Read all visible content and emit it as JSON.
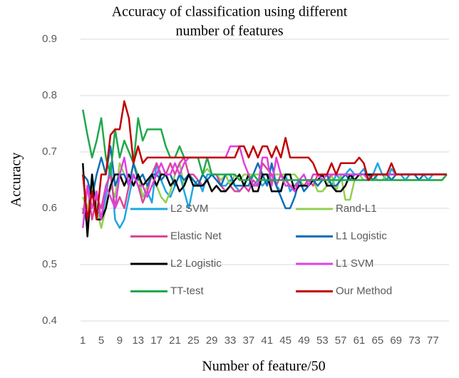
{
  "chart_data": {
    "type": "line",
    "title": [
      "Accuracy of classification using different",
      "number of features"
    ],
    "x_label": "Number of feature/50",
    "y_label": "Accuracy",
    "categories": [
      1,
      null,
      null,
      null,
      5,
      null,
      null,
      null,
      9,
      null,
      null,
      null,
      13,
      null,
      null,
      null,
      17,
      null,
      null,
      null,
      21,
      null,
      null,
      null,
      25,
      null,
      null,
      null,
      29,
      null,
      null,
      null,
      33,
      null,
      null,
      null,
      37,
      null,
      null,
      null,
      41,
      null,
      null,
      null,
      45,
      null,
      null,
      null,
      49,
      null,
      null,
      null,
      53,
      null,
      null,
      null,
      57,
      null,
      null,
      null,
      61,
      null,
      null,
      null,
      65,
      null,
      null,
      null,
      69,
      null,
      null,
      null,
      73,
      null,
      null,
      null,
      77,
      null,
      null,
      null
    ],
    "ylim": [
      0.4,
      0.9
    ],
    "yticks": [
      0.4,
      0.5,
      0.6,
      0.7,
      0.8,
      0.9
    ],
    "grid": true,
    "legend": "bottom",
    "series": [
      {
        "name": "L2 SVM",
        "color": "#1ea7e1",
        "values": [
          0.6,
          0.57,
          0.66,
          0.6,
          0.58,
          0.62,
          0.68,
          0.58,
          0.565,
          0.58,
          0.62,
          0.66,
          0.64,
          0.62,
          0.63,
          0.61,
          0.68,
          0.65,
          0.63,
          0.62,
          0.64,
          0.66,
          0.63,
          0.6,
          0.64,
          0.65,
          0.63,
          0.66,
          0.66,
          0.65,
          0.64,
          0.64,
          0.65,
          0.64,
          0.63,
          0.64,
          0.66,
          0.64,
          0.65,
          0.64,
          0.65,
          0.66,
          0.64,
          0.63,
          0.66,
          0.63,
          0.64,
          0.65,
          0.64,
          0.64,
          0.66,
          0.66,
          0.65,
          0.66,
          0.64,
          0.66,
          0.65,
          0.66,
          0.67,
          0.66,
          0.66,
          0.67,
          0.65,
          0.66,
          0.68,
          0.66,
          0.65,
          0.67,
          0.66,
          0.66,
          0.65,
          0.66,
          0.66,
          0.66,
          0.66,
          0.65,
          0.66,
          0.66,
          0.66,
          0.66
        ]
      },
      {
        "name": "Rand-L1",
        "color": "#92d050",
        "values": [
          0.62,
          0.6,
          0.64,
          0.6,
          0.565,
          0.6,
          0.64,
          0.62,
          0.68,
          0.66,
          0.64,
          0.68,
          0.66,
          0.62,
          0.64,
          0.66,
          0.64,
          0.62,
          0.61,
          0.63,
          0.66,
          0.68,
          0.64,
          0.66,
          0.65,
          0.64,
          0.66,
          0.67,
          0.66,
          0.66,
          0.65,
          0.66,
          0.64,
          0.66,
          0.65,
          0.66,
          0.66,
          0.66,
          0.66,
          0.66,
          0.66,
          0.66,
          0.66,
          0.66,
          0.66,
          0.66,
          0.66,
          0.65,
          0.64,
          0.65,
          0.65,
          0.63,
          0.63,
          0.64,
          0.66,
          0.63,
          0.66,
          0.615,
          0.615,
          0.65,
          0.66,
          0.65,
          0.65,
          0.66,
          0.65,
          0.65,
          0.66,
          0.65,
          0.65,
          0.65,
          0.65,
          0.65,
          0.65,
          0.65,
          0.65,
          0.65,
          0.65,
          0.65,
          0.65,
          0.66
        ]
      },
      {
        "name": "Elastic Net",
        "color": "#d9479b",
        "values": [
          0.59,
          0.64,
          0.58,
          0.62,
          0.6,
          0.64,
          0.66,
          0.6,
          0.62,
          0.6,
          0.64,
          0.66,
          0.64,
          0.61,
          0.63,
          0.66,
          0.68,
          0.66,
          0.66,
          0.68,
          0.66,
          0.68,
          0.69,
          0.66,
          0.66,
          0.65,
          0.64,
          0.65,
          0.66,
          0.66,
          0.64,
          0.63,
          0.64,
          0.63,
          0.63,
          0.64,
          0.63,
          0.65,
          0.64,
          0.68,
          0.67,
          0.66,
          0.64,
          0.66,
          0.65,
          0.64,
          0.64,
          0.64,
          0.64,
          0.65,
          0.64,
          0.66,
          0.65,
          0.65,
          0.66,
          0.66,
          0.66,
          0.66,
          0.66,
          0.66,
          0.66,
          0.66,
          0.66,
          0.66,
          0.66,
          0.66,
          0.66,
          0.66,
          0.66,
          0.66,
          0.66,
          0.66,
          0.66,
          0.66,
          0.66,
          0.66,
          0.66,
          0.66,
          0.66,
          0.66
        ]
      },
      {
        "name": "L1 Logistic",
        "color": "#0e6eb8",
        "values": [
          0.66,
          0.65,
          0.62,
          0.66,
          0.69,
          0.66,
          0.71,
          0.64,
          0.66,
          0.66,
          0.64,
          0.68,
          0.65,
          0.66,
          0.64,
          0.66,
          0.66,
          0.65,
          0.66,
          0.66,
          0.64,
          0.66,
          0.65,
          0.66,
          0.65,
          0.64,
          0.66,
          0.65,
          0.66,
          0.65,
          0.64,
          0.66,
          0.66,
          0.64,
          0.64,
          0.64,
          0.64,
          0.66,
          0.68,
          0.66,
          0.64,
          0.68,
          0.64,
          0.62,
          0.6,
          0.6,
          0.62,
          0.65,
          0.63,
          0.64,
          0.65,
          0.64,
          0.65,
          0.66,
          0.64,
          0.64,
          0.65,
          0.66,
          0.65,
          0.66,
          0.66,
          0.66,
          0.66,
          0.65,
          0.66,
          0.66,
          0.66,
          0.65,
          0.66,
          0.66,
          0.66,
          0.66,
          0.66,
          0.65,
          0.66,
          0.66,
          0.66,
          0.66,
          0.66,
          0.66
        ]
      },
      {
        "name": "L2 Logistic",
        "color": "#000000",
        "values": [
          0.68,
          0.55,
          0.66,
          0.58,
          0.58,
          0.6,
          0.64,
          0.66,
          0.66,
          0.64,
          0.66,
          0.64,
          0.66,
          0.64,
          0.65,
          0.66,
          0.64,
          0.66,
          0.66,
          0.64,
          0.65,
          0.63,
          0.64,
          0.66,
          0.64,
          0.64,
          0.64,
          0.65,
          0.63,
          0.64,
          0.63,
          0.63,
          0.64,
          0.65,
          0.66,
          0.64,
          0.66,
          0.63,
          0.63,
          0.66,
          0.66,
          0.63,
          0.63,
          0.63,
          0.66,
          0.66,
          0.63,
          0.64,
          0.64,
          0.64,
          0.65,
          0.65,
          0.66,
          0.64,
          0.64,
          0.63,
          0.63,
          0.64,
          0.66,
          0.65,
          0.66,
          0.66,
          0.66,
          0.66,
          0.66,
          0.66,
          0.66,
          0.66,
          0.66,
          0.66,
          0.66,
          0.66,
          0.66,
          0.66,
          0.66,
          0.66,
          0.66,
          0.66,
          0.66,
          0.66
        ]
      },
      {
        "name": "L1 SVM",
        "color": "#e040e0",
        "values": [
          0.565,
          0.64,
          0.6,
          0.63,
          0.58,
          0.64,
          0.62,
          0.6,
          0.66,
          0.69,
          0.64,
          0.66,
          0.64,
          0.64,
          0.62,
          0.64,
          0.66,
          0.68,
          0.66,
          0.66,
          0.68,
          0.66,
          0.68,
          0.69,
          0.69,
          0.69,
          0.69,
          0.69,
          0.69,
          0.69,
          0.69,
          0.69,
          0.71,
          0.71,
          0.71,
          0.68,
          0.66,
          0.64,
          0.64,
          0.69,
          0.69,
          0.64,
          0.69,
          0.66,
          0.64,
          0.64,
          0.63,
          0.65,
          0.66,
          0.64,
          0.66,
          0.66,
          0.65,
          0.66,
          0.66,
          0.66,
          0.66,
          0.66,
          0.66,
          0.66,
          0.66,
          0.66,
          0.65,
          0.66,
          0.66,
          0.66,
          0.66,
          0.66,
          0.66,
          0.66,
          0.66,
          0.66,
          0.66,
          0.66,
          0.66,
          0.66,
          0.66,
          0.66,
          0.66,
          0.66
        ]
      },
      {
        "name": "TT-test",
        "color": "#1fa84c",
        "values": [
          0.775,
          0.73,
          0.69,
          0.72,
          0.76,
          0.69,
          0.66,
          0.74,
          0.69,
          0.72,
          0.7,
          0.68,
          0.76,
          0.72,
          0.74,
          0.74,
          0.74,
          0.74,
          0.71,
          0.69,
          0.69,
          0.71,
          0.69,
          0.69,
          0.69,
          0.69,
          0.66,
          0.69,
          0.66,
          0.66,
          0.66,
          0.66,
          0.66,
          0.66,
          0.65,
          0.65,
          0.65,
          0.66,
          0.65,
          0.65,
          0.65,
          0.65,
          0.65,
          0.65,
          0.65,
          0.65,
          0.65,
          0.65,
          0.65,
          0.65,
          0.65,
          0.65,
          0.65,
          0.65,
          0.65,
          0.65,
          0.65,
          0.65,
          0.65,
          0.65,
          0.65,
          0.65,
          0.65,
          0.65,
          0.65,
          0.65,
          0.65,
          0.65,
          0.65,
          0.65,
          0.65,
          0.65,
          0.65,
          0.65,
          0.65,
          0.65,
          0.65,
          0.65,
          0.65,
          0.66
        ]
      },
      {
        "name": "Our Method",
        "color": "#c00000",
        "values": [
          0.66,
          0.58,
          0.63,
          0.58,
          0.66,
          0.66,
          0.73,
          0.74,
          0.74,
          0.79,
          0.76,
          0.68,
          0.71,
          0.68,
          0.69,
          0.69,
          0.69,
          0.69,
          0.69,
          0.69,
          0.69,
          0.69,
          0.69,
          0.69,
          0.69,
          0.69,
          0.69,
          0.69,
          0.69,
          0.69,
          0.69,
          0.69,
          0.69,
          0.69,
          0.71,
          0.71,
          0.69,
          0.71,
          0.69,
          0.71,
          0.71,
          0.69,
          0.71,
          0.69,
          0.725,
          0.69,
          0.69,
          0.69,
          0.69,
          0.69,
          0.68,
          0.66,
          0.66,
          0.66,
          0.68,
          0.66,
          0.68,
          0.68,
          0.68,
          0.68,
          0.69,
          0.68,
          0.65,
          0.66,
          0.66,
          0.66,
          0.66,
          0.68,
          0.66,
          0.66,
          0.66,
          0.66,
          0.66,
          0.66,
          0.66,
          0.66,
          0.66,
          0.66,
          0.66,
          0.66
        ]
      }
    ]
  }
}
